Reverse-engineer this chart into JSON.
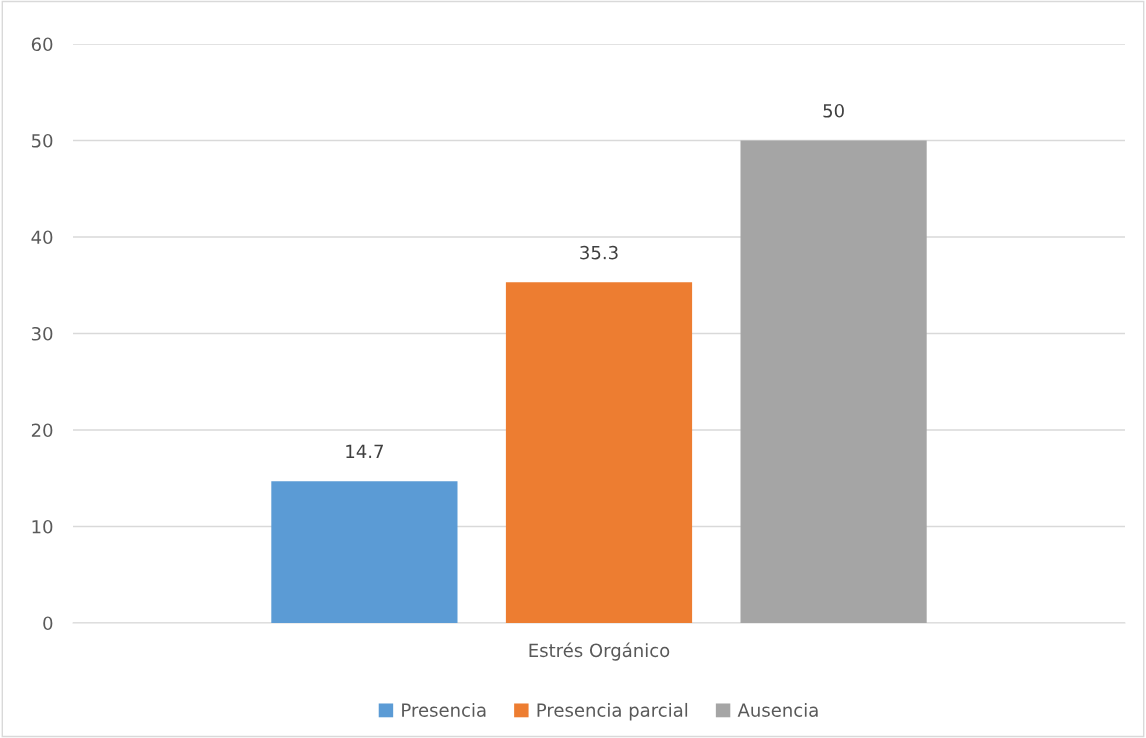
{
  "chart_data": {
    "type": "bar",
    "categories": [
      "Estrés Orgánico"
    ],
    "series": [
      {
        "name": "Presencia",
        "color": "#5b9bd5",
        "values": [
          14.7
        ]
      },
      {
        "name": "Presencia parcial",
        "color": "#ed7d31",
        "values": [
          35.3
        ]
      },
      {
        "name": "Ausencia",
        "color": "#a5a5a5",
        "values": [
          50
        ]
      }
    ],
    "ylim": [
      0,
      60
    ],
    "yticks": [
      0,
      10,
      20,
      30,
      40,
      50,
      60
    ],
    "grid": "y",
    "legend": "bottom",
    "data_labels": true
  }
}
